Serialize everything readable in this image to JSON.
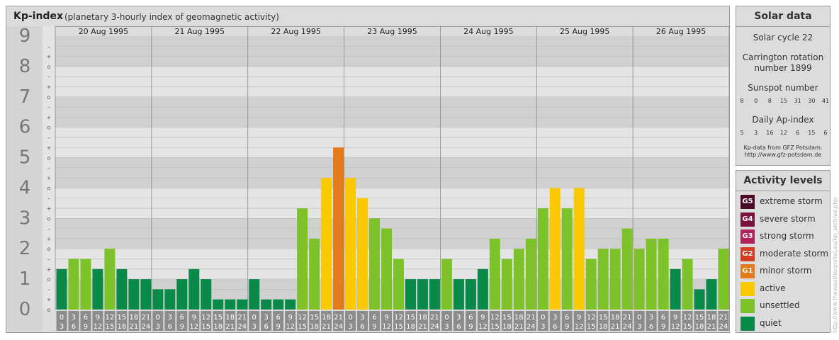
{
  "header": {
    "title": "Kp-index",
    "subtitle": "(planetary 3-hourly index of geomagnetic activity)"
  },
  "chart_data": {
    "type": "bar",
    "ylim": [
      0,
      9
    ],
    "y_ticks": [
      "0",
      "1",
      "2",
      "3",
      "4",
      "5",
      "6",
      "7",
      "8",
      "9"
    ],
    "minor_tick_labels": [
      "–",
      "o",
      "+"
    ],
    "days": [
      "20 Aug 1995",
      "21 Aug 1995",
      "22 Aug 1995",
      "23 Aug 1995",
      "24 Aug 1995",
      "25 Aug 1995",
      "26 Aug 1995"
    ],
    "interval_start": [
      "0",
      "3",
      "6",
      "9",
      "12",
      "15",
      "18",
      "21"
    ],
    "interval_end": [
      "3",
      "6",
      "9",
      "12",
      "15",
      "18",
      "21",
      "24"
    ],
    "values": [
      [
        1.333,
        1.667,
        1.667,
        1.333,
        2.0,
        1.333,
        1.0,
        1.0
      ],
      [
        0.667,
        0.667,
        1.0,
        1.333,
        1.0,
        0.333,
        0.333,
        0.333
      ],
      [
        1.0,
        0.333,
        0.333,
        0.333,
        3.333,
        2.333,
        4.333,
        5.333
      ],
      [
        4.333,
        3.667,
        3.0,
        2.667,
        1.667,
        1.0,
        1.0,
        1.0
      ],
      [
        1.667,
        1.0,
        1.0,
        1.333,
        2.333,
        1.667,
        2.0,
        2.333
      ],
      [
        3.333,
        4.0,
        3.333,
        4.0,
        1.667,
        2.0,
        2.0,
        2.667
      ],
      [
        2.0,
        2.333,
        2.333,
        1.333,
        1.667,
        0.667,
        1.0,
        2.0
      ]
    ],
    "colors": {
      "quiet": "#0a8a4a",
      "unsettled": "#7dc229",
      "active": "#fcc800",
      "minor": "#e57a1b",
      "moderate": "#d43d20",
      "strong": "#b0215a",
      "severe": "#7a1040",
      "extreme": "#4a0a28"
    }
  },
  "solar_data": {
    "title": "Solar data",
    "solar_cycle": "Solar cycle 22",
    "carrington_line1": "Carrington rotation",
    "carrington_line2": "number 1899",
    "sunspot_title": "Sunspot number",
    "sunspot_values": [
      "8",
      "0",
      "8",
      "15",
      "31",
      "30",
      "41"
    ],
    "ap_title": "Daily Ap-index",
    "ap_values": [
      "5",
      "3",
      "16",
      "12",
      "6",
      "15",
      "6"
    ],
    "source_line1": "Kp-data from GFZ Potsdam:",
    "source_line2": "http://www.gfz-potsdam.de"
  },
  "activity_levels": {
    "title": "Activity levels",
    "items": [
      {
        "badge": "G5",
        "label": "extreme storm",
        "color": "#4a0a28"
      },
      {
        "badge": "G4",
        "label": "severe storm",
        "color": "#7a1040"
      },
      {
        "badge": "G3",
        "label": "strong storm",
        "color": "#b0215a"
      },
      {
        "badge": "G2",
        "label": "moderate storm",
        "color": "#d43d20"
      },
      {
        "badge": "G1",
        "label": "minor storm",
        "color": "#e57a1b"
      },
      {
        "badge": "",
        "label": "active",
        "color": "#fcc800"
      },
      {
        "badge": "",
        "label": "unsettled",
        "color": "#7dc229"
      },
      {
        "badge": "",
        "label": "quiet",
        "color": "#0a8a4a"
      }
    ]
  },
  "watermark": "http://www.theweatherportal.eu/kp_archive.php"
}
